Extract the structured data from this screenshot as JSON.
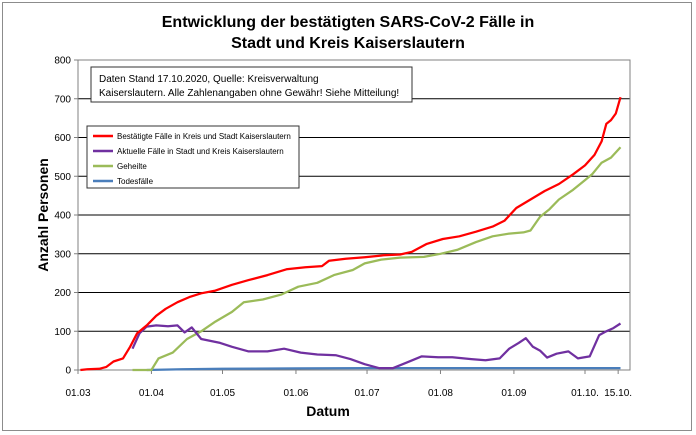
{
  "chart_data": {
    "type": "line",
    "title_line1": "Entwicklung der bestätigten SARS-CoV-2 Fälle in",
    "title_line2": "Stadt und Kreis Kaiserslautern",
    "xlabel": "Datum",
    "ylabel": "Anzahl Personen",
    "ylim": [
      0,
      800
    ],
    "yticks": [
      0,
      100,
      200,
      300,
      400,
      500,
      600,
      700,
      800
    ],
    "xlim": [
      "2020-03-01",
      "2020-10-20"
    ],
    "xticks": [
      {
        "date": "2020-03-01",
        "label": "01.03"
      },
      {
        "date": "2020-04-01",
        "label": "01.04"
      },
      {
        "date": "2020-05-01",
        "label": "01.05"
      },
      {
        "date": "2020-06-01",
        "label": "01.06"
      },
      {
        "date": "2020-07-01",
        "label": "01.07"
      },
      {
        "date": "2020-08-01",
        "label": "01.08"
      },
      {
        "date": "2020-09-01",
        "label": "01.09"
      },
      {
        "date": "2020-10-01",
        "label": "01.10."
      },
      {
        "date": "2020-10-15",
        "label": "15.10."
      }
    ],
    "grid": "horizontal",
    "legend_position": "left",
    "annotation": {
      "line1": "Daten Stand 17.10.2020, Quelle: Kreisverwaltung",
      "line2": "Kaiserslautern. Alle Zahlenangaben ohne Gewähr! Siehe Mitteilung!"
    },
    "series": [
      {
        "name": "Bestätigte Fälle in Kreis und Stadt Kaiserslautern",
        "color": "#ff0000",
        "points": [
          [
            "2020-03-02",
            0
          ],
          [
            "2020-03-05",
            2
          ],
          [
            "2020-03-10",
            3
          ],
          [
            "2020-03-13",
            8
          ],
          [
            "2020-03-16",
            22
          ],
          [
            "2020-03-20",
            30
          ],
          [
            "2020-03-23",
            60
          ],
          [
            "2020-03-26",
            95
          ],
          [
            "2020-03-30",
            115
          ],
          [
            "2020-04-03",
            140
          ],
          [
            "2020-04-07",
            158
          ],
          [
            "2020-04-12",
            175
          ],
          [
            "2020-04-17",
            188
          ],
          [
            "2020-04-22",
            198
          ],
          [
            "2020-04-28",
            205
          ],
          [
            "2020-05-05",
            220
          ],
          [
            "2020-05-12",
            232
          ],
          [
            "2020-05-20",
            245
          ],
          [
            "2020-05-28",
            260
          ],
          [
            "2020-06-05",
            265
          ],
          [
            "2020-06-12",
            268
          ],
          [
            "2020-06-15",
            282
          ],
          [
            "2020-06-22",
            287
          ],
          [
            "2020-06-30",
            291
          ],
          [
            "2020-07-08",
            296
          ],
          [
            "2020-07-15",
            298
          ],
          [
            "2020-07-20",
            305
          ],
          [
            "2020-07-26",
            325
          ],
          [
            "2020-08-02",
            338
          ],
          [
            "2020-08-09",
            345
          ],
          [
            "2020-08-16",
            357
          ],
          [
            "2020-08-23",
            370
          ],
          [
            "2020-08-28",
            385
          ],
          [
            "2020-09-02",
            418
          ],
          [
            "2020-09-08",
            440
          ],
          [
            "2020-09-14",
            462
          ],
          [
            "2020-09-20",
            480
          ],
          [
            "2020-09-26",
            505
          ],
          [
            "2020-10-01",
            528
          ],
          [
            "2020-10-05",
            555
          ],
          [
            "2020-10-08",
            590
          ],
          [
            "2020-10-10",
            635
          ],
          [
            "2020-10-12",
            645
          ],
          [
            "2020-10-14",
            662
          ],
          [
            "2020-10-16",
            704
          ]
        ]
      },
      {
        "name": "Aktuelle Fälle in Stadt und Kreis Kaiserslautern",
        "color": "#7030a0",
        "points": [
          [
            "2020-03-24",
            55
          ],
          [
            "2020-03-27",
            95
          ],
          [
            "2020-03-30",
            112
          ],
          [
            "2020-04-03",
            115
          ],
          [
            "2020-04-08",
            113
          ],
          [
            "2020-04-12",
            115
          ],
          [
            "2020-04-15",
            97
          ],
          [
            "2020-04-18",
            110
          ],
          [
            "2020-04-22",
            80
          ],
          [
            "2020-04-30",
            70
          ],
          [
            "2020-05-05",
            60
          ],
          [
            "2020-05-12",
            48
          ],
          [
            "2020-05-20",
            48
          ],
          [
            "2020-05-27",
            55
          ],
          [
            "2020-06-03",
            45
          ],
          [
            "2020-06-10",
            40
          ],
          [
            "2020-06-18",
            38
          ],
          [
            "2020-06-24",
            28
          ],
          [
            "2020-06-30",
            15
          ],
          [
            "2020-07-06",
            5
          ],
          [
            "2020-07-12",
            5
          ],
          [
            "2020-07-18",
            20
          ],
          [
            "2020-07-24",
            35
          ],
          [
            "2020-07-31",
            33
          ],
          [
            "2020-08-06",
            33
          ],
          [
            "2020-08-14",
            28
          ],
          [
            "2020-08-20",
            25
          ],
          [
            "2020-08-26",
            30
          ],
          [
            "2020-08-30",
            55
          ],
          [
            "2020-09-03",
            70
          ],
          [
            "2020-09-06",
            82
          ],
          [
            "2020-09-09",
            60
          ],
          [
            "2020-09-12",
            50
          ],
          [
            "2020-09-15",
            32
          ],
          [
            "2020-09-19",
            42
          ],
          [
            "2020-09-24",
            48
          ],
          [
            "2020-09-28",
            30
          ],
          [
            "2020-10-03",
            35
          ],
          [
            "2020-10-07",
            90
          ],
          [
            "2020-10-10",
            100
          ],
          [
            "2020-10-13",
            108
          ],
          [
            "2020-10-16",
            120
          ]
        ]
      },
      {
        "name": "Geheilte",
        "color": "#9bbb59",
        "points": [
          [
            "2020-03-24",
            0
          ],
          [
            "2020-04-01",
            0
          ],
          [
            "2020-04-04",
            30
          ],
          [
            "2020-04-10",
            45
          ],
          [
            "2020-04-16",
            80
          ],
          [
            "2020-04-22",
            100
          ],
          [
            "2020-04-28",
            125
          ],
          [
            "2020-05-05",
            150
          ],
          [
            "2020-05-10",
            175
          ],
          [
            "2020-05-18",
            182
          ],
          [
            "2020-05-26",
            195
          ],
          [
            "2020-06-02",
            215
          ],
          [
            "2020-06-10",
            225
          ],
          [
            "2020-06-17",
            245
          ],
          [
            "2020-06-25",
            258
          ],
          [
            "2020-06-30",
            275
          ],
          [
            "2020-07-07",
            285
          ],
          [
            "2020-07-15",
            290
          ],
          [
            "2020-07-25",
            292
          ],
          [
            "2020-08-01",
            300
          ],
          [
            "2020-08-08",
            310
          ],
          [
            "2020-08-16",
            330
          ],
          [
            "2020-08-23",
            345
          ],
          [
            "2020-08-30",
            352
          ],
          [
            "2020-09-05",
            355
          ],
          [
            "2020-09-08",
            360
          ],
          [
            "2020-09-12",
            395
          ],
          [
            "2020-09-16",
            415
          ],
          [
            "2020-09-20",
            440
          ],
          [
            "2020-09-26",
            465
          ],
          [
            "2020-10-01",
            490
          ],
          [
            "2020-10-04",
            505
          ],
          [
            "2020-10-08",
            535
          ],
          [
            "2020-10-12",
            548
          ],
          [
            "2020-10-16",
            575
          ]
        ]
      },
      {
        "name": "Todesfälle",
        "color": "#4a7ebb",
        "points": [
          [
            "2020-03-30",
            0
          ],
          [
            "2020-04-14",
            2
          ],
          [
            "2020-05-01",
            3
          ],
          [
            "2020-06-01",
            4
          ],
          [
            "2020-07-01",
            5
          ],
          [
            "2020-10-16",
            5
          ]
        ]
      }
    ]
  }
}
